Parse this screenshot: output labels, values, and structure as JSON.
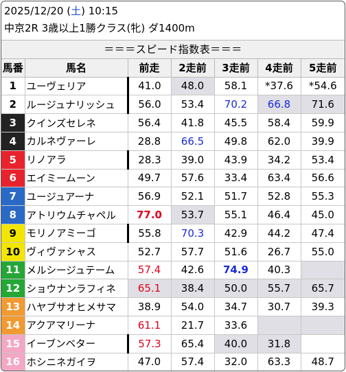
{
  "header": {
    "date": "2025/12/20",
    "dow_open": "(",
    "dow": "土",
    "dow_close": ")",
    "time": "10:15",
    "race": "中京2R 3歳以上1勝クラス(牝) ダ1400m"
  },
  "table_title": "＝＝＝スピード指数表＝＝＝",
  "columns": [
    "馬番",
    "馬名",
    "前走",
    "2走前",
    "3走前",
    "4走前",
    "5走前"
  ],
  "frame_colors": {
    "1": {
      "bg": "#ffffff",
      "fg": "#000000"
    },
    "2": {
      "bg": "#ffffff",
      "fg": "#000000"
    },
    "3": {
      "bg": "#222222",
      "fg": "#ffffff"
    },
    "4": {
      "bg": "#222222",
      "fg": "#ffffff"
    },
    "5": {
      "bg": "#e8232d",
      "fg": "#ffffff"
    },
    "6": {
      "bg": "#e8232d",
      "fg": "#ffffff"
    },
    "7": {
      "bg": "#2a6ac6",
      "fg": "#ffffff"
    },
    "8": {
      "bg": "#2a6ac6",
      "fg": "#ffffff"
    },
    "9": {
      "bg": "#f2e600",
      "fg": "#000000"
    },
    "10": {
      "bg": "#f2e600",
      "fg": "#000000"
    },
    "11": {
      "bg": "#25a737",
      "fg": "#ffffff"
    },
    "12": {
      "bg": "#25a737",
      "fg": "#ffffff"
    },
    "13": {
      "bg": "#f19a32",
      "fg": "#ffffff"
    },
    "14": {
      "bg": "#f19a32",
      "fg": "#ffffff"
    },
    "15": {
      "bg": "#f4a7c4",
      "fg": "#ffffff"
    },
    "16": {
      "bg": "#f4a7c4",
      "fg": "#ffffff"
    }
  },
  "rows": [
    {
      "num": "1",
      "name": "ユーヴェリア",
      "v": [
        "41.0",
        "48.0",
        "58.1",
        "*37.6",
        "*54.6"
      ],
      "s": [
        "",
        "",
        "",
        "",
        ""
      ],
      "hl": [
        false,
        true,
        false,
        false,
        false
      ],
      "thick": true
    },
    {
      "num": "2",
      "name": "ルージュナリッシュ",
      "v": [
        "56.0",
        "53.4",
        "70.2",
        "66.8",
        "71.6"
      ],
      "s": [
        "",
        "",
        "blue",
        "blue",
        ""
      ],
      "hl": [
        false,
        false,
        false,
        true,
        true
      ],
      "thick": true
    },
    {
      "num": "3",
      "name": "クインズセレネ",
      "v": [
        "56.4",
        "41.8",
        "45.5",
        "58.4",
        "59.9"
      ],
      "s": [
        "",
        "",
        "",
        "",
        ""
      ],
      "hl": [
        false,
        false,
        false,
        false,
        false
      ],
      "thick": false
    },
    {
      "num": "4",
      "name": "カルネヴァーレ",
      "v": [
        "28.8",
        "66.5",
        "49.8",
        "62.0",
        "39.9"
      ],
      "s": [
        "",
        "blue",
        "",
        "",
        ""
      ],
      "hl": [
        false,
        false,
        false,
        false,
        false
      ],
      "thick": false
    },
    {
      "num": "5",
      "name": "リノアラ",
      "v": [
        "28.3",
        "39.0",
        "43.9",
        "34.2",
        "53.4"
      ],
      "s": [
        "",
        "",
        "",
        "",
        ""
      ],
      "hl": [
        false,
        false,
        false,
        false,
        false
      ],
      "thick": true
    },
    {
      "num": "6",
      "name": "エイミームーン",
      "v": [
        "49.7",
        "57.6",
        "33.4",
        "63.4",
        "56.6"
      ],
      "s": [
        "",
        "",
        "",
        "",
        ""
      ],
      "hl": [
        false,
        false,
        false,
        false,
        false
      ],
      "thick": false
    },
    {
      "num": "7",
      "name": "ユージュアーナ",
      "v": [
        "56.9",
        "52.1",
        "51.7",
        "52.8",
        "55.3"
      ],
      "s": [
        "",
        "",
        "",
        "",
        ""
      ],
      "hl": [
        false,
        false,
        false,
        false,
        false
      ],
      "thick": false
    },
    {
      "num": "8",
      "name": "アトリウムチャペル",
      "v": [
        "77.0",
        "53.7",
        "55.1",
        "46.4",
        "45.0"
      ],
      "s": [
        "boldred",
        "",
        "",
        "",
        ""
      ],
      "hl": [
        false,
        true,
        false,
        false,
        false
      ],
      "thick": false
    },
    {
      "num": "9",
      "name": "モリノアミーゴ",
      "v": [
        "55.8",
        "70.3",
        "42.9",
        "44.2",
        "47.4"
      ],
      "s": [
        "",
        "blue",
        "",
        "",
        ""
      ],
      "hl": [
        false,
        false,
        false,
        false,
        false
      ],
      "thick": true
    },
    {
      "num": "10",
      "name": "ヴィヴァシャス",
      "v": [
        "52.7",
        "57.7",
        "51.6",
        "26.7",
        "55.0"
      ],
      "s": [
        "",
        "",
        "",
        "",
        ""
      ],
      "hl": [
        false,
        false,
        false,
        false,
        false
      ],
      "thick": false
    },
    {
      "num": "11",
      "name": "メルシージュテーム",
      "v": [
        "57.4",
        "42.6",
        "74.9",
        "40.3",
        ""
      ],
      "s": [
        "red",
        "",
        "boldblue",
        "",
        ""
      ],
      "hl": [
        false,
        false,
        false,
        false,
        false
      ],
      "empty": [
        false,
        false,
        false,
        false,
        true
      ],
      "thick": false
    },
    {
      "num": "12",
      "name": "ショウナンラフィネ",
      "v": [
        "65.1",
        "38.4",
        "50.0",
        "55.7",
        "65.7"
      ],
      "s": [
        "red",
        "",
        "",
        "",
        ""
      ],
      "hl": [
        true,
        true,
        true,
        true,
        true
      ],
      "thick": false
    },
    {
      "num": "13",
      "name": "ハヤブサオヒメサマ",
      "v": [
        "38.9",
        "54.0",
        "34.7",
        "30.7",
        "39.3"
      ],
      "s": [
        "",
        "",
        "",
        "",
        ""
      ],
      "hl": [
        false,
        false,
        false,
        false,
        false
      ],
      "thick": false
    },
    {
      "num": "14",
      "name": "アクアマリーナ",
      "v": [
        "61.1",
        "21.7",
        "33.6",
        "",
        ""
      ],
      "s": [
        "red",
        "",
        "",
        "",
        ""
      ],
      "hl": [
        false,
        false,
        false,
        false,
        false
      ],
      "empty": [
        false,
        false,
        false,
        true,
        true
      ],
      "thick": false
    },
    {
      "num": "15",
      "name": "イーブンベター",
      "v": [
        "57.3",
        "65.4",
        "40.0",
        "31.8",
        ""
      ],
      "s": [
        "red",
        "",
        "",
        "",
        ""
      ],
      "hl": [
        false,
        false,
        true,
        true,
        false
      ],
      "thick": true
    },
    {
      "num": "16",
      "name": "ホシニネガイヲ",
      "v": [
        "47.0",
        "57.4",
        "32.0",
        "63.3",
        "48.7"
      ],
      "s": [
        "",
        "",
        "",
        "",
        ""
      ],
      "hl": [
        false,
        false,
        false,
        false,
        false
      ],
      "thick": false
    }
  ]
}
